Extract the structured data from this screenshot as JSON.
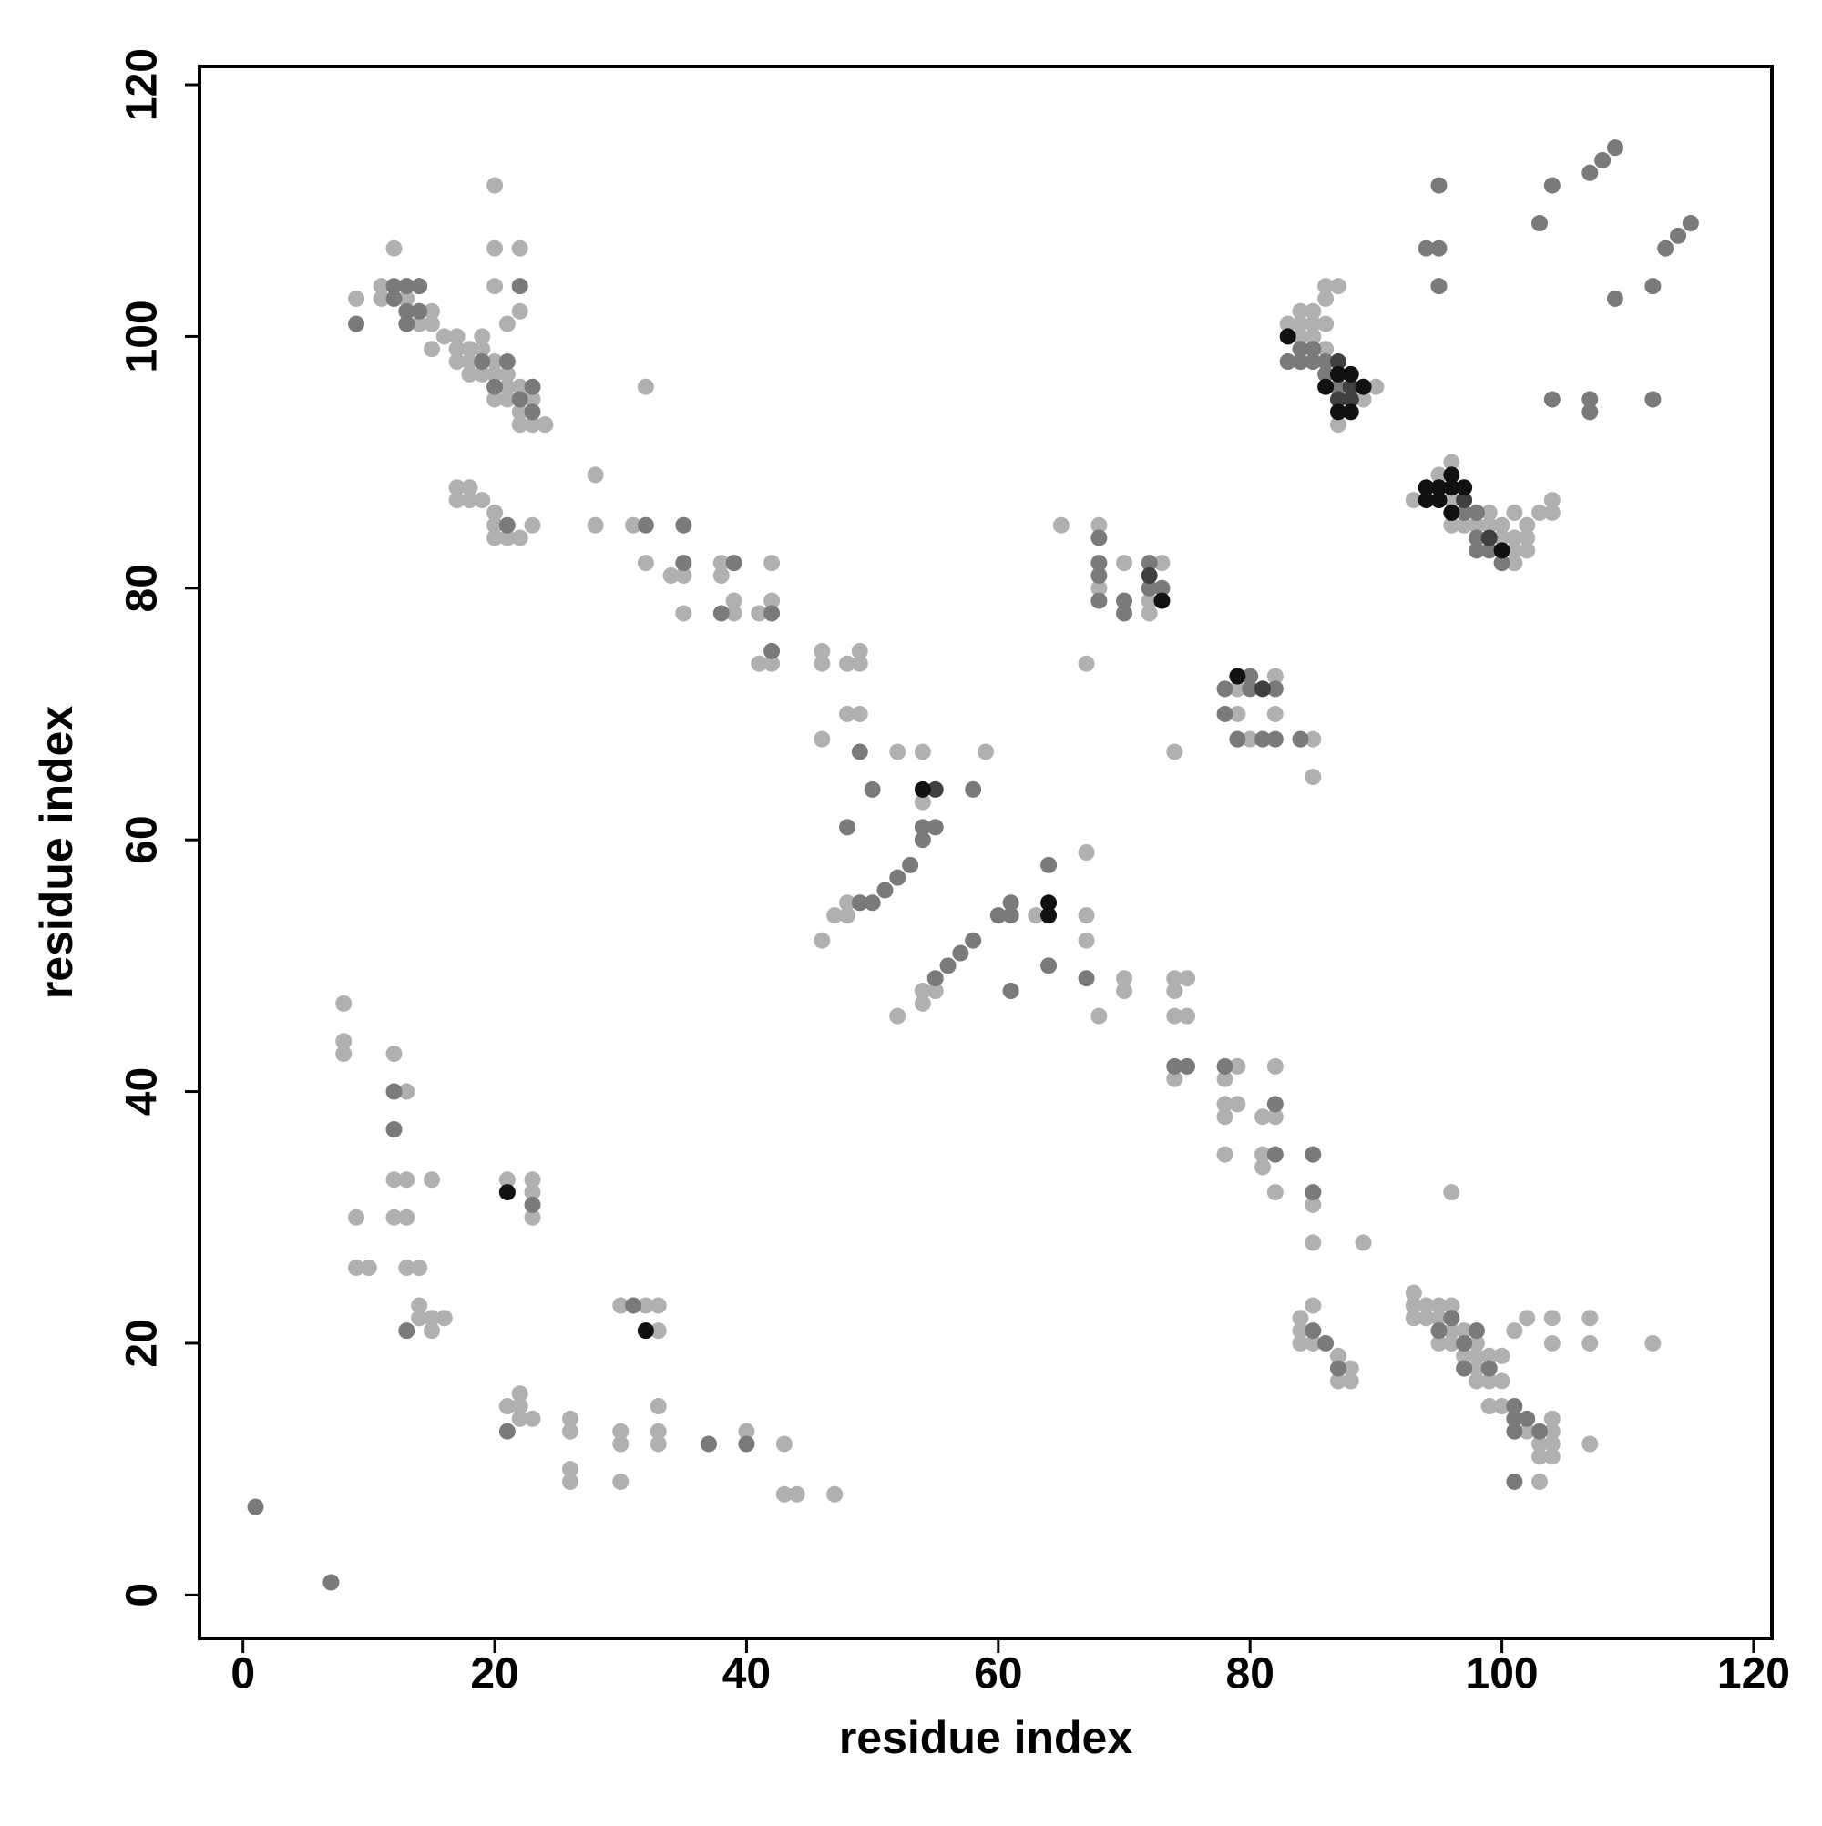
{
  "chart_data": {
    "type": "scatter",
    "xlabel": "residue index",
    "ylabel": "residue index",
    "xlim": [
      -3.45,
      121.45
    ],
    "ylim": [
      -3.45,
      121.45
    ],
    "xticks": [
      0,
      20,
      40,
      60,
      80,
      100,
      120
    ],
    "yticks": [
      0,
      20,
      40,
      60,
      80,
      100,
      120
    ],
    "series": [
      {
        "color": "#b0b0b0",
        "x": [
          8,
          8,
          8,
          9,
          9,
          10,
          12,
          13,
          12,
          13,
          12,
          13,
          13,
          14,
          14,
          14,
          15,
          15,
          16,
          15,
          21,
          23,
          23,
          23,
          30,
          32,
          33,
          33,
          21,
          22,
          22,
          22,
          23,
          26,
          26,
          26,
          26,
          30,
          30,
          30,
          33,
          33,
          33,
          40,
          43,
          43,
          44,
          47,
          9,
          11,
          11,
          12,
          13,
          14,
          15,
          15,
          15,
          16,
          17,
          17,
          17,
          18,
          18,
          18,
          19,
          19,
          19,
          20,
          20,
          20,
          21,
          21,
          21,
          21,
          22,
          22,
          20,
          20,
          20,
          22,
          22,
          22,
          23,
          23,
          24,
          17,
          17,
          18,
          18,
          19,
          20,
          20,
          20,
          21,
          22,
          23,
          32,
          28,
          28,
          31,
          32,
          34,
          35,
          35,
          38,
          38,
          39,
          39,
          41,
          42,
          42,
          41,
          42,
          46,
          46,
          46,
          48,
          49,
          49,
          48,
          49,
          52,
          54,
          54,
          59,
          48,
          48,
          47,
          46,
          52,
          54,
          54,
          55,
          63,
          67,
          67,
          67,
          68,
          70,
          70,
          74,
          74,
          75,
          74,
          75,
          74,
          65,
          67,
          68,
          68,
          70,
          72,
          72,
          73,
          74,
          79,
          79,
          80,
          82,
          82,
          85,
          85,
          78,
          78,
          78,
          79,
          79,
          78,
          81,
          81,
          81,
          82,
          82,
          82,
          85,
          85,
          89,
          84,
          84,
          84,
          85,
          85,
          87,
          87,
          88,
          88,
          96,
          93,
          93,
          93,
          94,
          94,
          95,
          95,
          95,
          96,
          96,
          96,
          97,
          97,
          98,
          98,
          98,
          98,
          99,
          99,
          99,
          100,
          100,
          100,
          101,
          102,
          102,
          103,
          103,
          103,
          104,
          104,
          104,
          104,
          104,
          104,
          107,
          107,
          107,
          112,
          83,
          84,
          84,
          84,
          85,
          85,
          85,
          86,
          86,
          86,
          86,
          87,
          87,
          89,
          90,
          93,
          95,
          96,
          96,
          96,
          97,
          98,
          99,
          99,
          100,
          100,
          101,
          101,
          101,
          101,
          102,
          102,
          102,
          103,
          104,
          104
        ],
        "y": [
          47,
          44,
          43,
          30,
          26,
          26,
          43,
          40,
          33,
          33,
          30,
          30,
          26,
          26,
          23,
          22,
          22,
          21,
          22,
          33,
          33,
          33,
          32,
          30,
          23,
          23,
          23,
          21,
          15,
          15,
          16,
          14,
          14,
          14,
          13,
          10,
          9,
          13,
          12,
          9,
          15,
          13,
          12,
          13,
          12,
          8,
          8,
          8,
          103,
          104,
          103,
          107,
          103,
          101,
          102,
          101,
          99,
          100,
          100,
          99,
          98,
          99,
          98,
          97,
          100,
          99,
          97,
          98,
          97,
          95,
          97,
          96,
          95,
          101,
          102,
          107,
          107,
          104,
          112,
          96,
          94,
          93,
          95,
          93,
          93,
          88,
          87,
          88,
          87,
          87,
          86,
          85,
          84,
          84,
          84,
          85,
          96,
          89,
          85,
          85,
          82,
          81,
          81,
          78,
          82,
          81,
          79,
          78,
          78,
          82,
          79,
          74,
          74,
          75,
          74,
          68,
          74,
          75,
          74,
          70,
          70,
          67,
          67,
          63,
          67,
          55,
          54,
          54,
          52,
          46,
          48,
          47,
          48,
          54,
          59,
          54,
          52,
          46,
          49,
          48,
          49,
          48,
          49,
          46,
          46,
          41,
          85,
          74,
          85,
          80,
          82,
          79,
          78,
          82,
          67,
          72,
          70,
          68,
          73,
          70,
          68,
          65,
          41,
          39,
          38,
          42,
          39,
          35,
          38,
          35,
          34,
          42,
          38,
          32,
          31,
          28,
          28,
          22,
          21,
          20,
          23,
          20,
          19,
          17,
          18,
          17,
          32,
          24,
          23,
          22,
          23,
          22,
          23,
          22,
          20,
          23,
          21,
          20,
          21,
          19,
          20,
          19,
          18,
          17,
          19,
          17,
          15,
          19,
          17,
          15,
          21,
          22,
          13,
          12,
          11,
          9,
          22,
          20,
          14,
          13,
          12,
          11,
          22,
          20,
          12,
          20,
          101,
          102,
          101,
          100,
          102,
          101,
          100,
          104,
          103,
          101,
          99,
          104,
          93,
          95,
          96,
          87,
          89,
          90,
          87,
          85,
          85,
          85,
          86,
          85,
          85,
          84,
          86,
          84,
          83,
          82,
          85,
          84,
          83,
          86,
          87,
          86
        ]
      },
      {
        "color": "#7a7a7a",
        "x": [
          1,
          7,
          12,
          12,
          13,
          23,
          31,
          21,
          37,
          40,
          9,
          12,
          12,
          13,
          13,
          13,
          14,
          14,
          19,
          20,
          21,
          22,
          22,
          23,
          23,
          21,
          32,
          35,
          35,
          39,
          38,
          42,
          42,
          49,
          50,
          48,
          54,
          55,
          54,
          58,
          53,
          52,
          51,
          50,
          49,
          55,
          56,
          57,
          58,
          60,
          61,
          61,
          61,
          64,
          64,
          67,
          74,
          75,
          68,
          68,
          68,
          68,
          70,
          70,
          72,
          72,
          73,
          78,
          78,
          79,
          80,
          80,
          81,
          82,
          82,
          84,
          78,
          82,
          82,
          85,
          85,
          85,
          86,
          87,
          95,
          96,
          97,
          97,
          98,
          99,
          101,
          101,
          101,
          101,
          102,
          103,
          83,
          84,
          84,
          85,
          85,
          86,
          86,
          87,
          97,
          98,
          98,
          98,
          99,
          100,
          95,
          94,
          95,
          95,
          104,
          103,
          107,
          108,
          109,
          104,
          107,
          107,
          109,
          112,
          112,
          113,
          114,
          115
        ],
        "y": [
          7,
          1,
          40,
          37,
          21,
          31,
          23,
          13,
          12,
          12,
          101,
          104,
          103,
          104,
          102,
          101,
          104,
          102,
          98,
          96,
          98,
          104,
          95,
          96,
          94,
          85,
          85,
          85,
          82,
          82,
          78,
          78,
          75,
          67,
          64,
          61,
          61,
          61,
          60,
          64,
          58,
          57,
          56,
          55,
          55,
          49,
          50,
          51,
          52,
          54,
          54,
          55,
          48,
          58,
          50,
          49,
          42,
          42,
          84,
          82,
          81,
          79,
          79,
          78,
          82,
          80,
          80,
          72,
          70,
          68,
          73,
          72,
          68,
          72,
          68,
          68,
          42,
          39,
          35,
          35,
          32,
          21,
          20,
          18,
          21,
          22,
          20,
          18,
          21,
          18,
          15,
          14,
          13,
          9,
          14,
          13,
          98,
          99,
          98,
          99,
          98,
          98,
          97,
          96,
          86,
          86,
          84,
          83,
          83,
          82,
          112,
          107,
          107,
          104,
          112,
          109,
          113,
          114,
          115,
          95,
          95,
          94,
          103,
          104,
          95,
          107,
          108,
          109
        ]
      },
      {
        "color": "#404040",
        "x": [
          55,
          72,
          81,
          87,
          87,
          88,
          88,
          97,
          99
        ],
        "y": [
          64,
          81,
          72,
          98,
          95,
          96,
          95,
          87,
          84
        ]
      },
      {
        "color": "#111111",
        "x": [
          21,
          32,
          54,
          64,
          64,
          73,
          79,
          83,
          86,
          87,
          87,
          88,
          88,
          89,
          94,
          94,
          95,
          95,
          96,
          96,
          96,
          97,
          100
        ],
        "y": [
          32,
          21,
          64,
          54,
          55,
          79,
          73,
          100,
          96,
          97,
          94,
          97,
          94,
          96,
          88,
          87,
          88,
          87,
          89,
          88,
          86,
          88,
          83
        ]
      }
    ]
  }
}
